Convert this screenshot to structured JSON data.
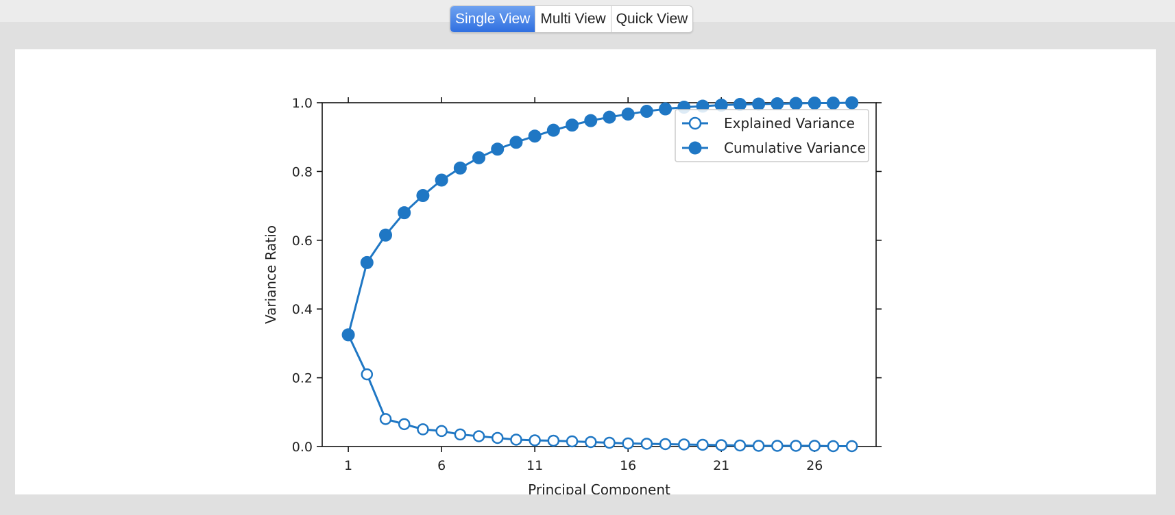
{
  "view_tabs": [
    "Single View",
    "Multi View",
    "Quick View"
  ],
  "active_tab": 0,
  "chart_data": {
    "type": "line",
    "xlabel": "Principal Component",
    "ylabel": "Variance Ratio",
    "xlim": [
      -0.4,
      29.3
    ],
    "ylim": [
      0,
      1.0
    ],
    "xticks": [
      1,
      6,
      11,
      16,
      21,
      26
    ],
    "yticks": [
      0.0,
      0.2,
      0.4,
      0.6,
      0.8,
      1.0
    ],
    "legend_position": "top-right",
    "color": "#1f77c4",
    "x": [
      1,
      2,
      3,
      4,
      5,
      6,
      7,
      8,
      9,
      10,
      11,
      12,
      13,
      14,
      15,
      16,
      17,
      18,
      19,
      20,
      21,
      22,
      23,
      24,
      25,
      26,
      27,
      28
    ],
    "series": [
      {
        "name": "Explained Variance",
        "marker": "open-circle",
        "values": [
          0.325,
          0.21,
          0.08,
          0.065,
          0.05,
          0.045,
          0.035,
          0.03,
          0.025,
          0.02,
          0.018,
          0.017,
          0.015,
          0.013,
          0.011,
          0.009,
          0.008,
          0.007,
          0.006,
          0.005,
          0.004,
          0.003,
          0.002,
          0.002,
          0.002,
          0.002,
          0.001,
          0.001
        ]
      },
      {
        "name": "Cumulative Variance",
        "marker": "filled-circle",
        "values": [
          0.325,
          0.535,
          0.615,
          0.68,
          0.73,
          0.775,
          0.81,
          0.84,
          0.865,
          0.885,
          0.903,
          0.92,
          0.935,
          0.948,
          0.958,
          0.967,
          0.975,
          0.982,
          0.987,
          0.99,
          0.993,
          0.995,
          0.996,
          0.997,
          0.998,
          0.999,
          0.999,
          1.0
        ]
      }
    ]
  }
}
